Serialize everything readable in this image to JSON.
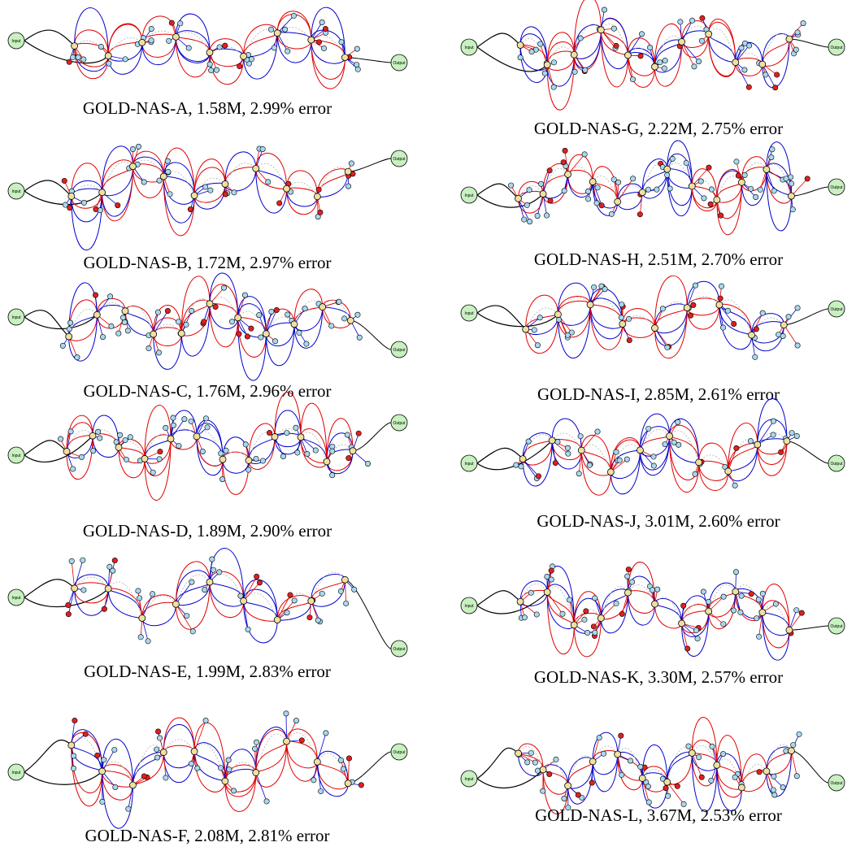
{
  "figures": [
    {
      "caption": "GOLD-NAS-A, 1.58M, 2.99% error",
      "input_label": "Input",
      "output_label": "Output"
    },
    {
      "caption": "GOLD-NAS-B, 1.72M, 2.97% error",
      "input_label": "Input",
      "output_label": "Output"
    },
    {
      "caption": "GOLD-NAS-C, 1.76M, 2.96% error",
      "input_label": "Input",
      "output_label": "Output"
    },
    {
      "caption": "GOLD-NAS-D, 1.89M, 2.90% error",
      "input_label": "Input",
      "output_label": "Output"
    },
    {
      "caption": "GOLD-NAS-E, 1.99M, 2.83% error",
      "input_label": "Input",
      "output_label": "Output"
    },
    {
      "caption": "GOLD-NAS-F, 2.08M, 2.81% error",
      "input_label": "Input",
      "output_label": "Output"
    },
    {
      "caption": "GOLD-NAS-G, 2.22M, 2.75% error",
      "input_label": "Input",
      "output_label": "Output"
    },
    {
      "caption": "GOLD-NAS-H, 2.51M, 2.70% error",
      "input_label": "Input",
      "output_label": "Output"
    },
    {
      "caption": "GOLD-NAS-I, 2.85M, 2.61% error",
      "input_label": "Input",
      "output_label": "Output"
    },
    {
      "caption": "GOLD-NAS-J, 3.01M, 2.60% error",
      "input_label": "Input",
      "output_label": "Output"
    },
    {
      "caption": "GOLD-NAS-K, 3.30M, 2.57% error",
      "input_label": "Input",
      "output_label": "Output"
    },
    {
      "caption": "GOLD-NAS-L, 3.67M, 2.53% error",
      "input_label": "Input",
      "output_label": "Output"
    }
  ],
  "colors": {
    "io_fill": "#c8f0c0",
    "node_fill_light": "#a8d8f0",
    "node_fill_red": "#e02020",
    "cell_fill": "#f0e0a0",
    "edge_red": "#e00000",
    "edge_blue": "#0000cc",
    "edge_gray": "#b0b0b0",
    "edge_black": "#000000"
  }
}
